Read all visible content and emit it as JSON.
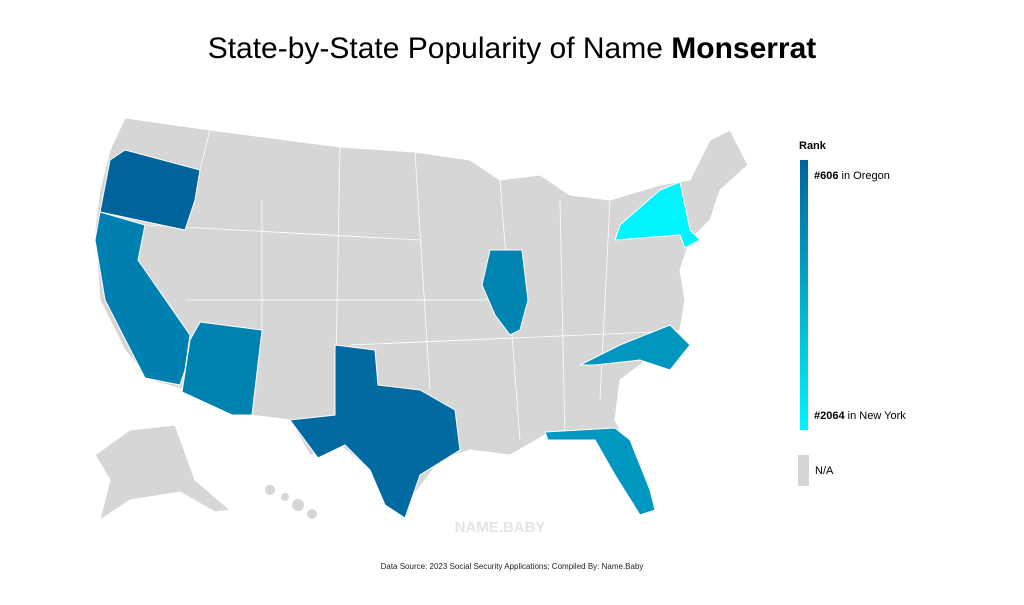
{
  "title": {
    "prefix": "State-by-State Popularity of Name",
    "name": "Monserrat"
  },
  "legend": {
    "title": "Rank",
    "top": {
      "rank": 606,
      "rank_label": "#606",
      "place": "in Oregon"
    },
    "bottom": {
      "rank": 2064,
      "rank_label": "#2064",
      "place": "in New York"
    },
    "colors": [
      "#00639c",
      "#00f4ff"
    ],
    "na": "N/A",
    "na_color": "#d6d6d6"
  },
  "states": {
    "OR": 606,
    "TX": 680,
    "CA": 900,
    "AZ": 920,
    "IL": 950,
    "NC": 1120,
    "FL": 1130,
    "NY": 2064
  },
  "watermark": "NAME.BABY",
  "footer": "Data Source: 2023 Social Security Applications; Compiled By: Name.Baby"
}
